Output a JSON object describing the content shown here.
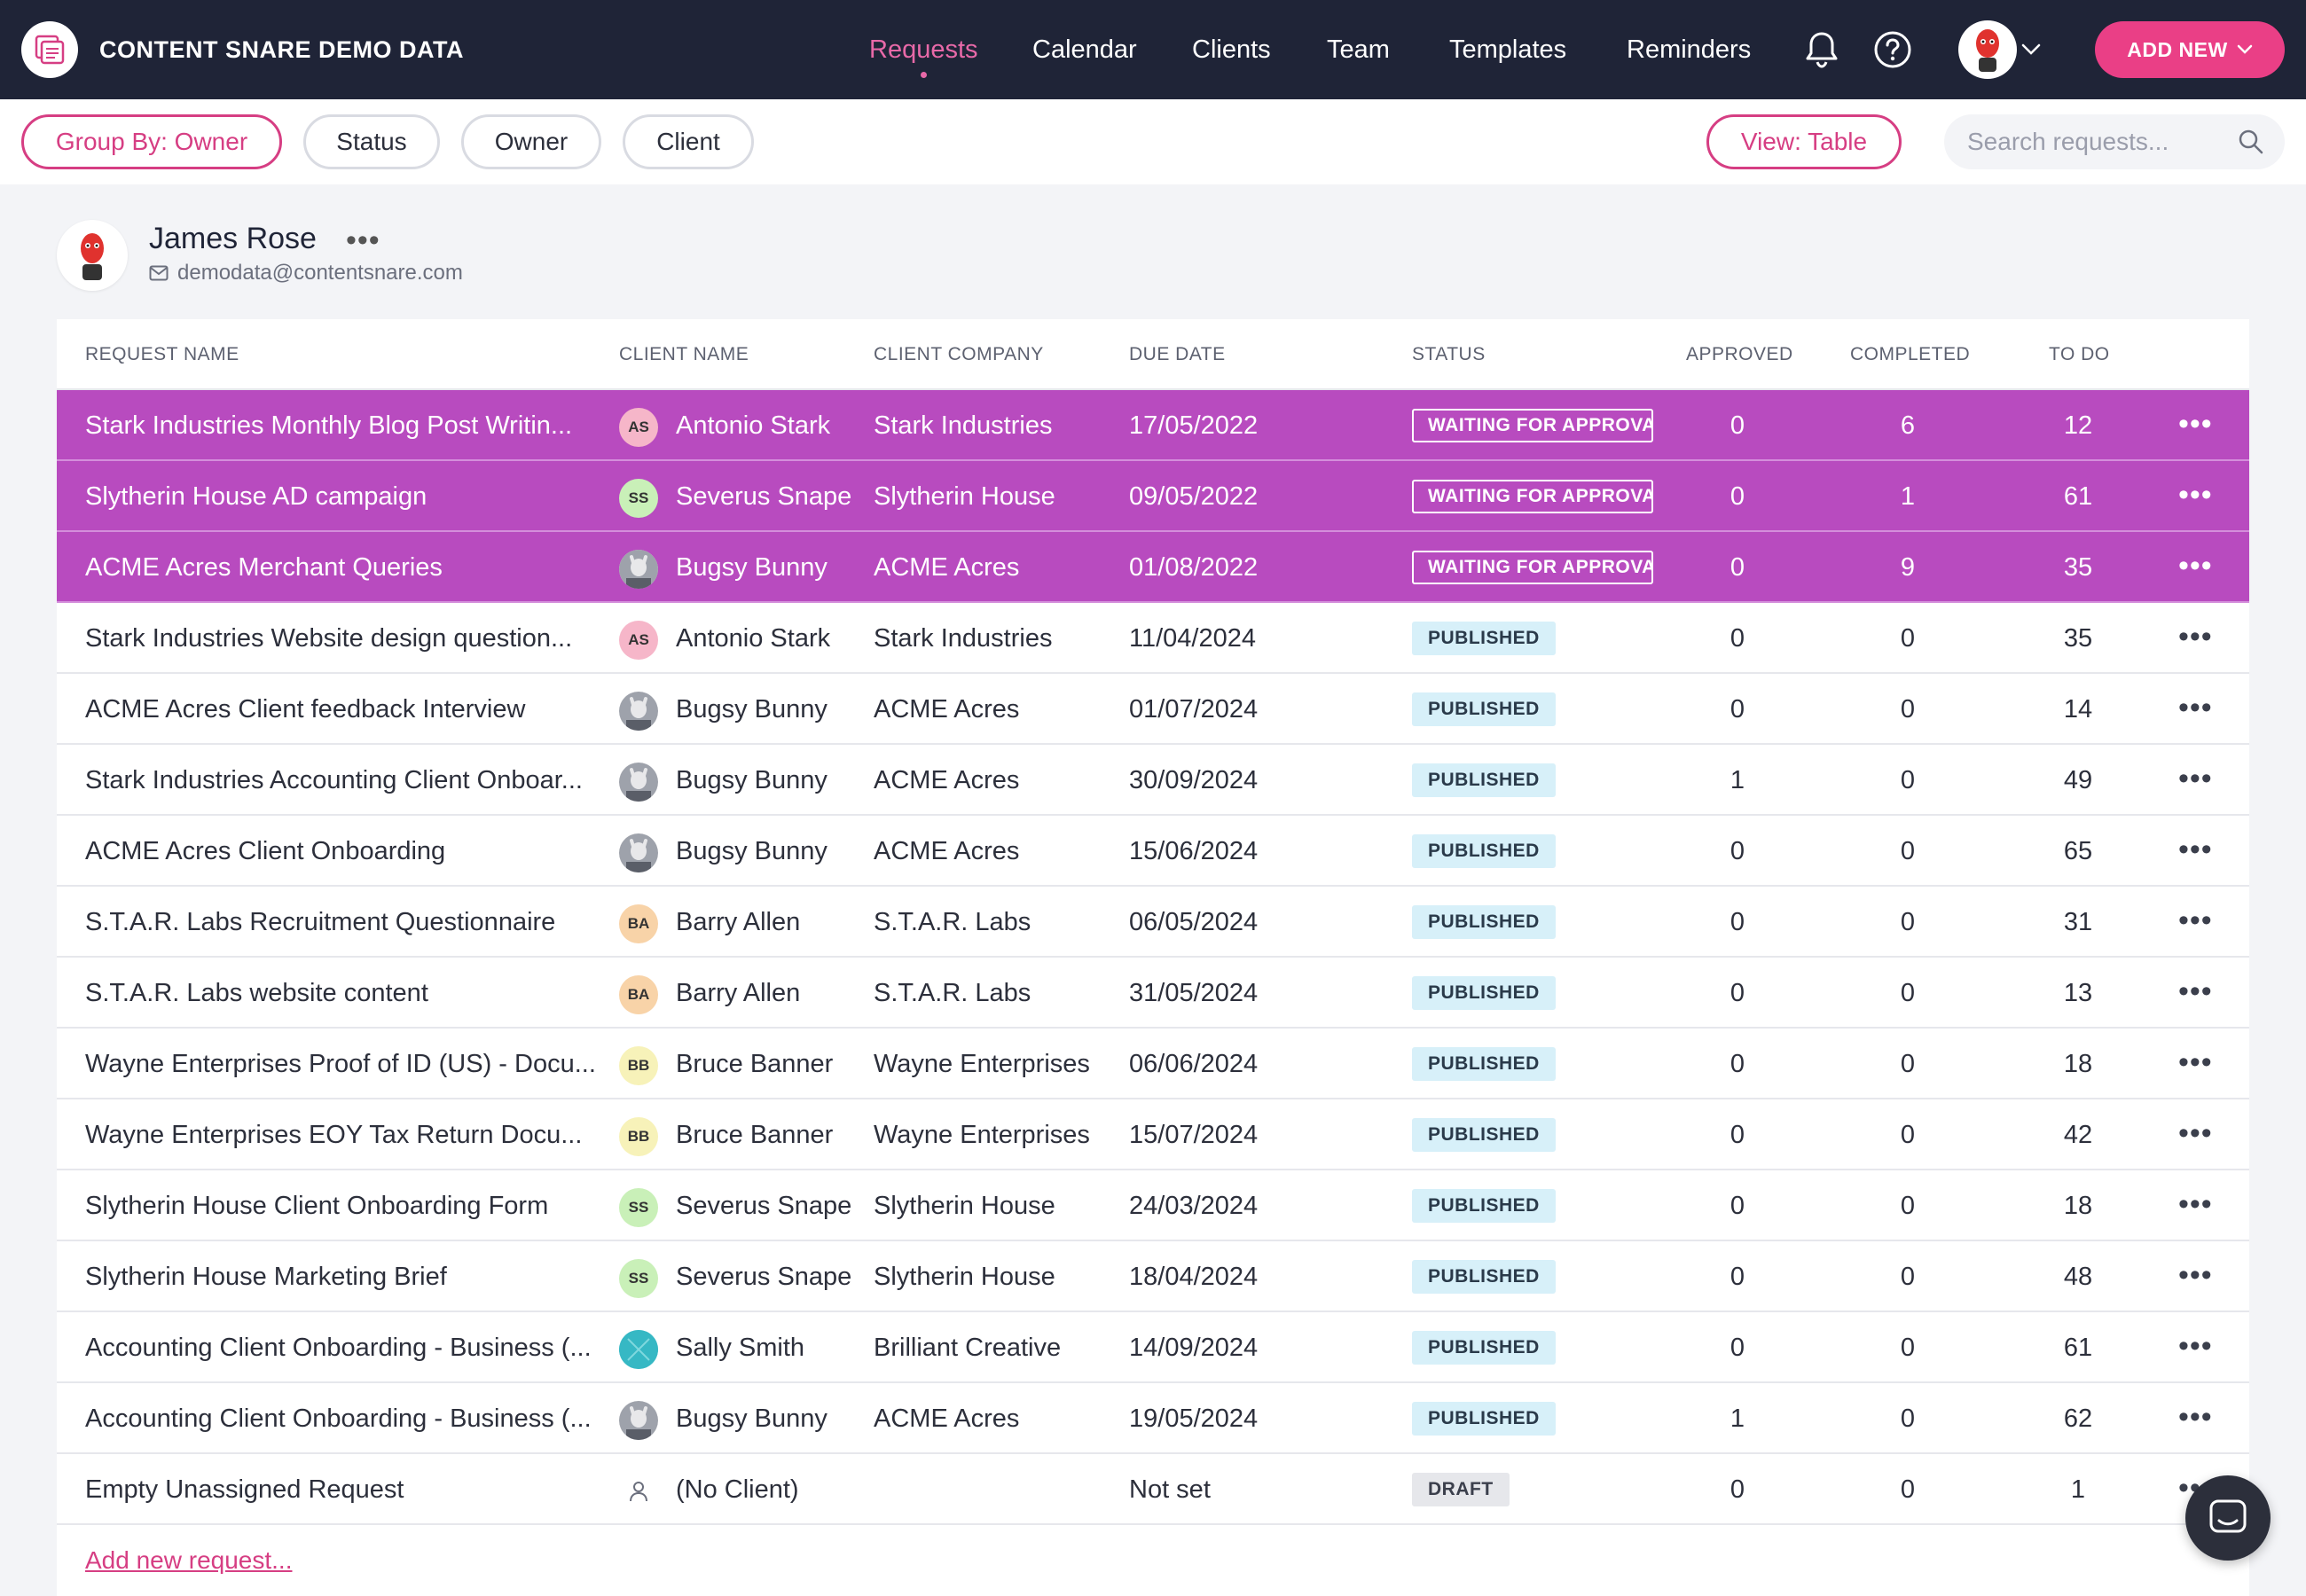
{
  "app": {
    "title": "CONTENT SNARE DEMO DATA"
  },
  "nav": {
    "items": [
      {
        "label": "Requests",
        "active": true
      },
      {
        "label": "Calendar"
      },
      {
        "label": "Clients"
      },
      {
        "label": "Team"
      },
      {
        "label": "Templates"
      },
      {
        "label": "Reminders"
      }
    ],
    "add_new": "ADD NEW",
    "icons": [
      "bell-icon",
      "help-icon",
      "user-avatar",
      "chevron-down-icon"
    ]
  },
  "filters": {
    "group_by": "Group By: Owner",
    "status": "Status",
    "owner": "Owner",
    "client": "Client",
    "view": "View: Table",
    "search_placeholder": "Search requests..."
  },
  "owner": {
    "name": "James Rose",
    "email": "demodata@contentsnare.com"
  },
  "table": {
    "headers": [
      "REQUEST NAME",
      "CLIENT NAME",
      "CLIENT COMPANY",
      "DUE DATE",
      "STATUS",
      "APPROVED",
      "COMPLETED",
      "TO DO"
    ],
    "rows": [
      {
        "name": "Stark Industries Monthly Blog Post Writin...",
        "initials": "AS",
        "client": "Antonio Stark",
        "company": "Stark Industries",
        "due": "17/05/2022",
        "status": "WAITING FOR APPROVAL",
        "approved": "0",
        "completed": "6",
        "todo": "12"
      },
      {
        "name": "Slytherin House AD campaign",
        "initials": "SS",
        "client": "Severus Snape",
        "company": "Slytherin House",
        "due": "09/05/2022",
        "status": "WAITING FOR APPROVAL",
        "approved": "0",
        "completed": "1",
        "todo": "61"
      },
      {
        "name": "ACME Acres Merchant Queries",
        "initials": "",
        "client": "Bugsy Bunny",
        "company": "ACME Acres",
        "due": "01/08/2022",
        "status": "WAITING FOR APPROVAL",
        "approved": "0",
        "completed": "9",
        "todo": "35"
      },
      {
        "name": "Stark Industries Website design question...",
        "initials": "AS",
        "client": "Antonio Stark",
        "company": "Stark Industries",
        "due": "11/04/2024",
        "status": "PUBLISHED",
        "approved": "0",
        "completed": "0",
        "todo": "35"
      },
      {
        "name": "ACME Acres Client feedback Interview",
        "initials": "",
        "client": "Bugsy Bunny",
        "company": "ACME Acres",
        "due": "01/07/2024",
        "status": "PUBLISHED",
        "approved": "0",
        "completed": "0",
        "todo": "14"
      },
      {
        "name": "Stark Industries Accounting Client Onboar...",
        "initials": "",
        "client": "Bugsy Bunny",
        "company": "ACME Acres",
        "due": "30/09/2024",
        "status": "PUBLISHED",
        "approved": "1",
        "completed": "0",
        "todo": "49"
      },
      {
        "name": "ACME Acres Client Onboarding",
        "initials": "",
        "client": "Bugsy Bunny",
        "company": "ACME Acres",
        "due": "15/06/2024",
        "status": "PUBLISHED",
        "approved": "0",
        "completed": "0",
        "todo": "65"
      },
      {
        "name": "S.T.A.R. Labs Recruitment Questionnaire",
        "initials": "BA",
        "client": "Barry Allen",
        "company": "S.T.A.R. Labs",
        "due": "06/05/2024",
        "status": "PUBLISHED",
        "approved": "0",
        "completed": "0",
        "todo": "31"
      },
      {
        "name": "S.T.A.R. Labs website content",
        "initials": "BA",
        "client": "Barry Allen",
        "company": "S.T.A.R. Labs",
        "due": "31/05/2024",
        "status": "PUBLISHED",
        "approved": "0",
        "completed": "0",
        "todo": "13"
      },
      {
        "name": "Wayne Enterprises Proof of ID (US) - Docu...",
        "initials": "BB",
        "client": "Bruce Banner",
        "company": "Wayne Enterprises",
        "due": "06/06/2024",
        "status": "PUBLISHED",
        "approved": "0",
        "completed": "0",
        "todo": "18"
      },
      {
        "name": "Wayne Enterprises EOY Tax Return Docu...",
        "initials": "BB",
        "client": "Bruce Banner",
        "company": "Wayne Enterprises",
        "due": "15/07/2024",
        "status": "PUBLISHED",
        "approved": "0",
        "completed": "0",
        "todo": "42"
      },
      {
        "name": "Slytherin House Client Onboarding Form",
        "initials": "SS",
        "client": "Severus Snape",
        "company": "Slytherin House",
        "due": "24/03/2024",
        "status": "PUBLISHED",
        "approved": "0",
        "completed": "0",
        "todo": "18"
      },
      {
        "name": "Slytherin House Marketing Brief",
        "initials": "SS",
        "client": "Severus Snape",
        "company": "Slytherin House",
        "due": "18/04/2024",
        "status": "PUBLISHED",
        "approved": "0",
        "completed": "0",
        "todo": "48"
      },
      {
        "name": "Accounting Client Onboarding - Business (...",
        "initials": "",
        "client": "Sally Smith",
        "company": "Brilliant Creative",
        "due": "14/09/2024",
        "status": "PUBLISHED",
        "approved": "0",
        "completed": "0",
        "todo": "61"
      },
      {
        "name": "Accounting Client Onboarding - Business (...",
        "initials": "",
        "client": "Bugsy Bunny",
        "company": "ACME Acres",
        "due": "19/05/2024",
        "status": "PUBLISHED",
        "approved": "1",
        "completed": "0",
        "todo": "62"
      },
      {
        "name": "Empty Unassigned Request",
        "initials": "",
        "client": "(No Client)",
        "company": "",
        "due": "Not set",
        "status": "DRAFT",
        "approved": "0",
        "completed": "0",
        "todo": "1"
      }
    ],
    "add_new_request": "Add new request...",
    "menu_glyph": "•••"
  },
  "colors": {
    "topbar": "#1f2437",
    "accent": "#ea3f86",
    "selected_row": "#b84bbf",
    "av_AS": "#f6b6c9",
    "av_SS": "#c9f0b8",
    "av_BA": "#f8d3a8",
    "av_BB": "#f7f2b9"
  }
}
